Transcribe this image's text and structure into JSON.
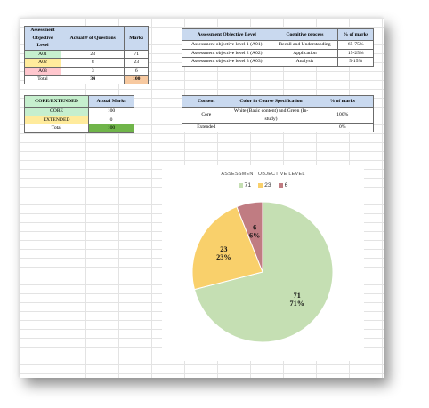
{
  "table_ao": {
    "headers": [
      "Assessment Objective Level",
      "Actual # of Questions",
      "Marks"
    ],
    "rows": [
      {
        "label": "A01",
        "questions": "23",
        "marks": "71",
        "color": "#c6efce"
      },
      {
        "label": "A02",
        "questions": "8",
        "marks": "23",
        "color": "#ffeb9c"
      },
      {
        "label": "A03",
        "questions": "3",
        "marks": "6",
        "color": "#ffc7ce"
      }
    ],
    "total": {
      "label": "Total",
      "questions": "34",
      "marks": "100"
    }
  },
  "table_cognitive": {
    "headers": [
      "Assessment Objective Level",
      "Cognitive process",
      "% of marks"
    ],
    "rows": [
      [
        "Assessment objective level 1 (A01)",
        "Recall and Understanding",
        "65-75%"
      ],
      [
        "Assessment objective level 2 (A02)",
        "Application",
        "15-25%"
      ],
      [
        "Assessment objective level 3 (A03)",
        "Analysis",
        "5-15%"
      ]
    ]
  },
  "table_core": {
    "headers": [
      "CORE/EXTENDED",
      "Actual Marks"
    ],
    "rows": [
      {
        "label": "CORE",
        "marks": "100"
      },
      {
        "label": "EXTENDED",
        "marks": "0"
      }
    ],
    "total": {
      "label": "Total",
      "marks": "100"
    }
  },
  "table_content": {
    "headers": [
      "Content",
      "Color in Course Specification",
      "% of marks"
    ],
    "rows": [
      [
        "Core",
        "White (Basic content) and Green (In-study)",
        "100%"
      ],
      [
        "Extended",
        "",
        "0%"
      ]
    ]
  },
  "chart_data": {
    "type": "pie",
    "title": "ASSESSMENT OBJECTIVE LEVEL",
    "legend_position": "top",
    "slices": [
      {
        "name": "71",
        "value": 71,
        "percent": "71%",
        "color": "#c5dfb3"
      },
      {
        "name": "23",
        "value": 23,
        "percent": "23%",
        "color": "#f9d06b"
      },
      {
        "name": "6",
        "value": 6,
        "percent": "6%",
        "color": "#c07c82"
      }
    ]
  }
}
